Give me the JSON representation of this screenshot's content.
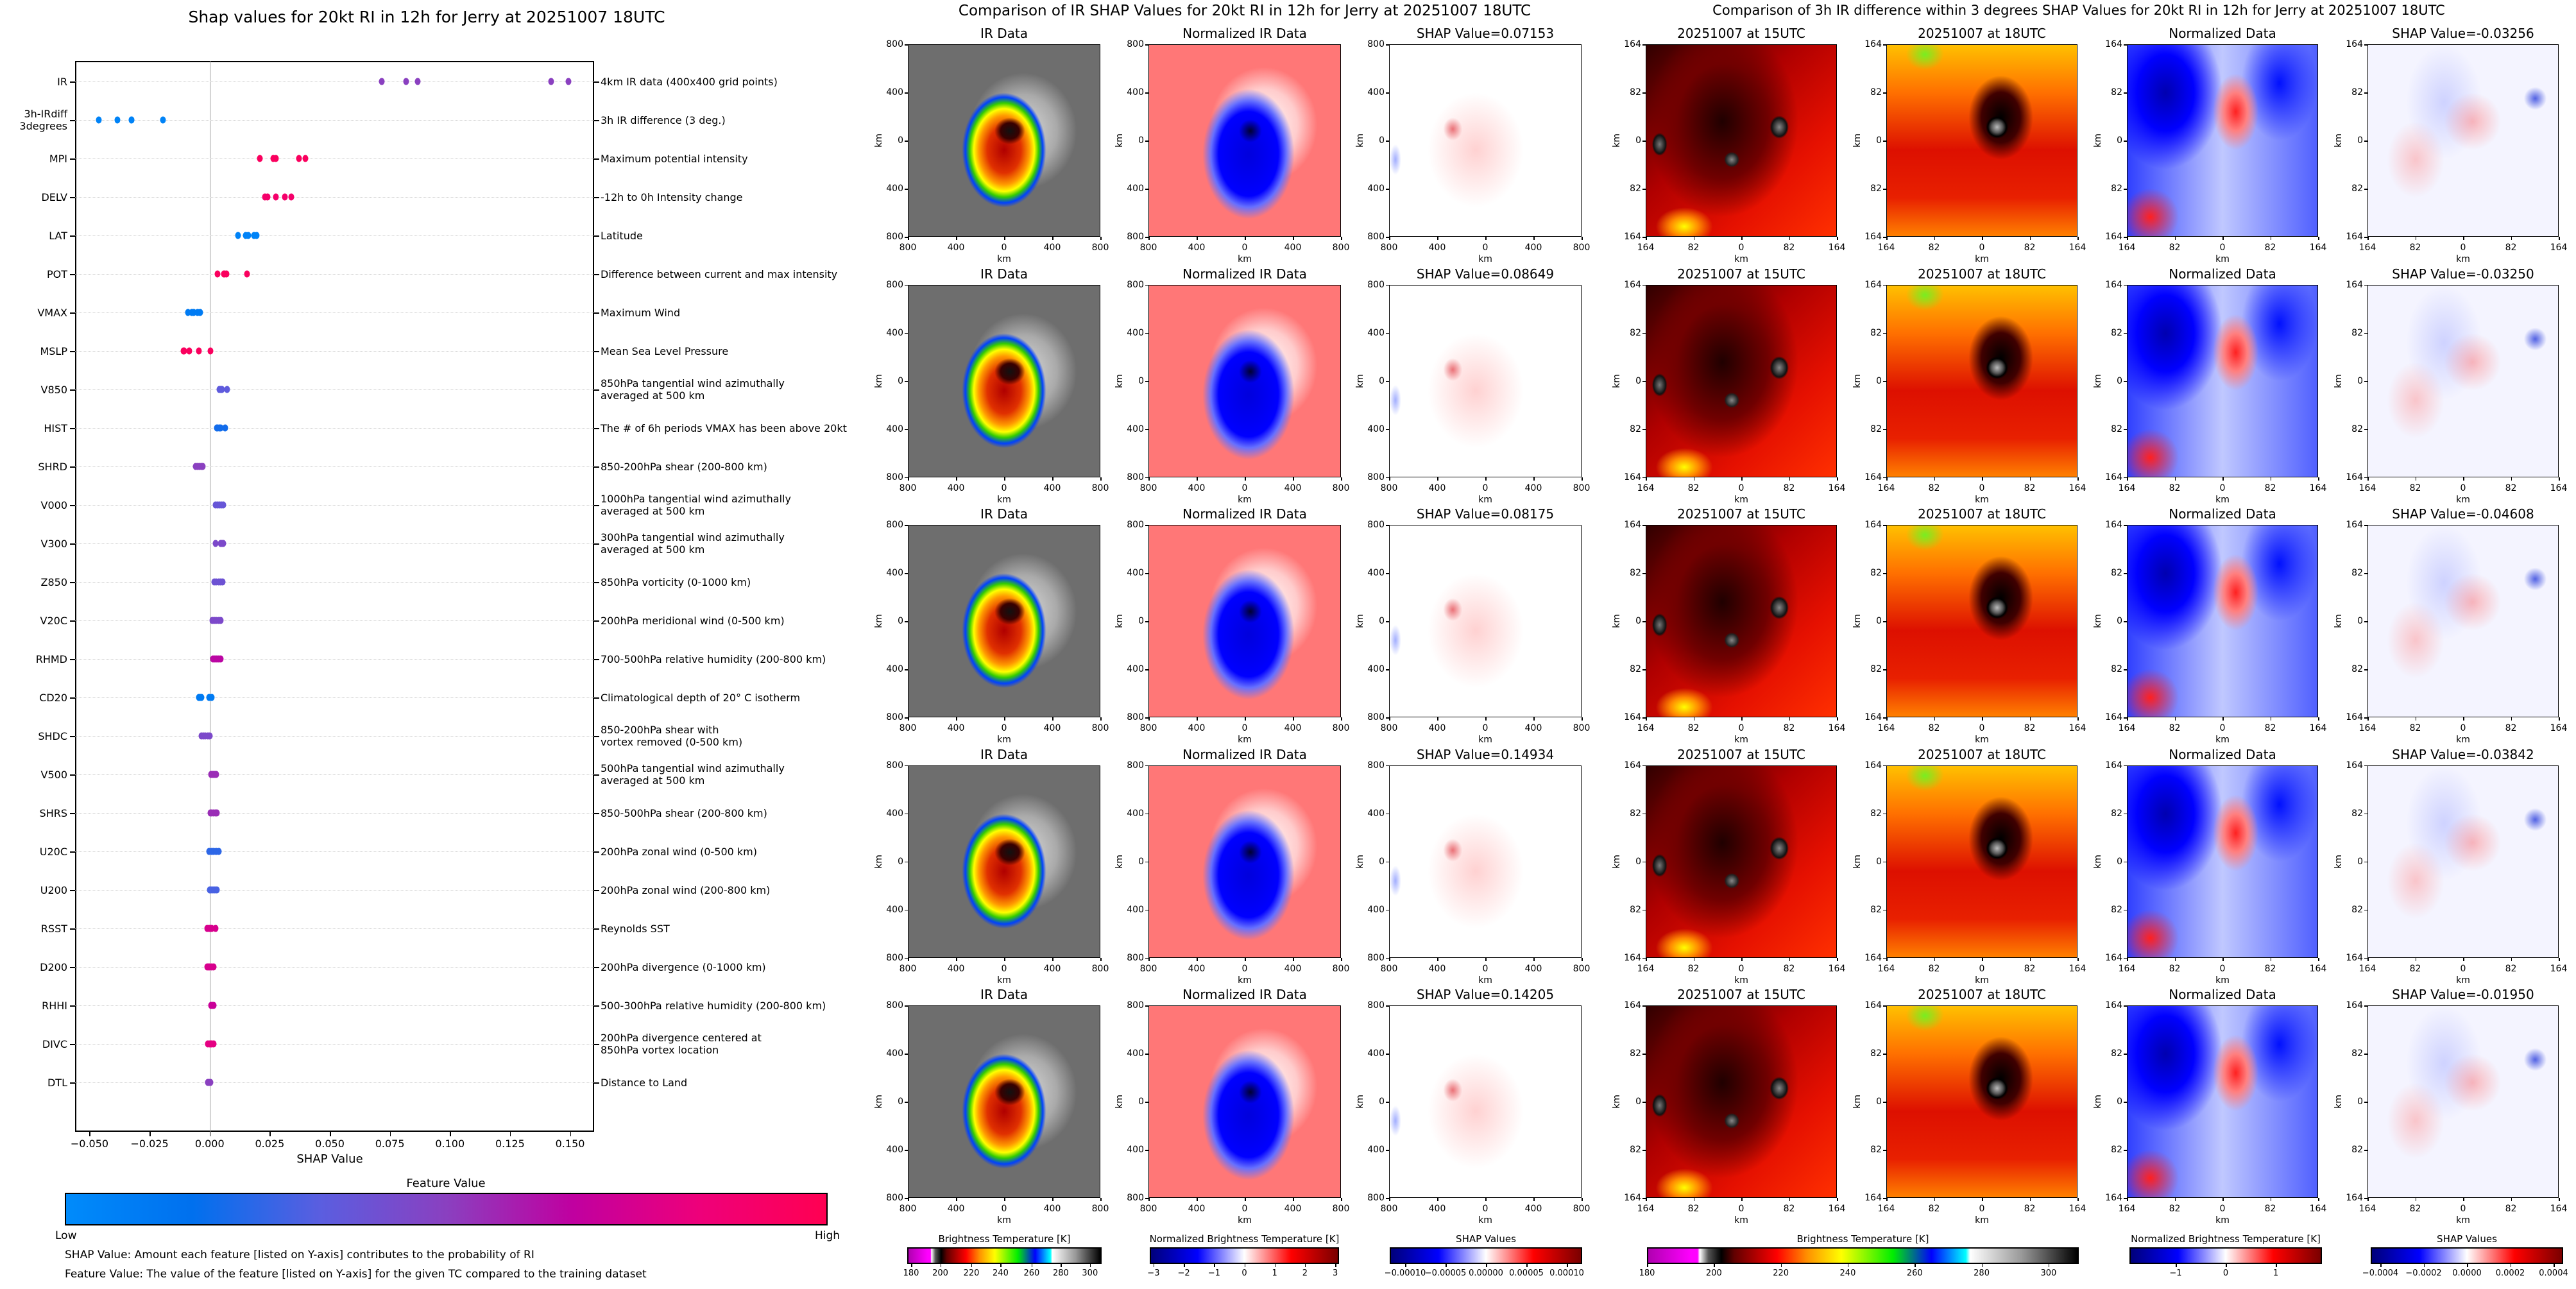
{
  "left": {
    "title": "Shap values for 20kt RI in 12h for Jerry at 20251007 18UTC",
    "xlabel": "SHAP Value",
    "xlim": [
      -0.056,
      0.16
    ],
    "xticks": [
      "−0.050",
      "−0.025",
      "0.000",
      "0.025",
      "0.050",
      "0.075",
      "0.100",
      "0.125",
      "0.150"
    ],
    "xtick_values": [
      -0.05,
      -0.025,
      0,
      0.025,
      0.05,
      0.075,
      0.1,
      0.125,
      0.15
    ],
    "features": [
      {
        "code": "IR",
        "desc": "4km IR data (400x400 grid points)",
        "feature_value": 0.5,
        "shap": [
          0.07153,
          0.08175,
          0.08649,
          0.14205,
          0.14934
        ]
      },
      {
        "code": "3h-IRdiff\n3degrees",
        "desc": "3h IR difference (3 deg.)",
        "feature_value": 0.05,
        "shap": [
          -0.04608,
          -0.03842,
          -0.03256,
          -0.0325,
          -0.0195
        ]
      },
      {
        "code": "MPI",
        "desc": "Maximum potential intensity",
        "feature_value": 0.95,
        "shap": [
          0.0209,
          0.0266,
          0.0275,
          0.0372,
          0.0399
        ]
      },
      {
        "code": "DELV",
        "desc": "-12h to 0h Intensity change",
        "feature_value": 0.9,
        "shap": [
          0.0231,
          0.0241,
          0.0275,
          0.0312,
          0.034
        ]
      },
      {
        "code": "LAT",
        "desc": "Latitude",
        "feature_value": 0.05,
        "shap": [
          0.0119,
          0.0151,
          0.016,
          0.0186,
          0.0195
        ]
      },
      {
        "code": "POT",
        "desc": "Difference between current and max intensity",
        "feature_value": 0.95,
        "shap": [
          0.0032,
          0.0059,
          0.0062,
          0.0069,
          0.0156
        ]
      },
      {
        "code": "VMAX",
        "desc": "Maximum Wind",
        "feature_value": 0.1,
        "shap": [
          -0.009,
          -0.0075,
          -0.0065,
          -0.005,
          -0.004
        ]
      },
      {
        "code": "MSLP",
        "desc": "Mean Sea Level Pressure",
        "feature_value": 0.95,
        "shap": [
          -0.011,
          -0.0105,
          -0.0085,
          -0.0046,
          0.0004
        ]
      },
      {
        "code": "V850",
        "desc": "850hPa tangential wind azimuthally\naveraged at 500 km",
        "feature_value": 0.35,
        "shap": [
          0.0041,
          0.0045,
          0.005,
          0.0052,
          0.0073
        ]
      },
      {
        "code": "HIST",
        "desc": "The # of 6h periods VMAX has been above 20kt",
        "feature_value": 0.2,
        "shap": [
          0.0029,
          0.0033,
          0.0041,
          0.0045,
          0.0066
        ]
      },
      {
        "code": "SHRD",
        "desc": "850-200hPa shear (200-800 km)",
        "feature_value": 0.5,
        "shap": [
          -0.0058,
          -0.005,
          -0.0042,
          -0.0035,
          -0.0028
        ]
      },
      {
        "code": "V000",
        "desc": "1000hPa tangential wind azimuthally\naveraged at 500 km",
        "feature_value": 0.38,
        "shap": [
          0.0025,
          0.0033,
          0.0041,
          0.0049,
          0.0057
        ]
      },
      {
        "code": "V300",
        "desc": "300hPa tangential wind azimuthally\naveraged at 500 km",
        "feature_value": 0.45,
        "shap": [
          0.0025,
          0.0045,
          0.005,
          0.0054,
          0.0057
        ]
      },
      {
        "code": "Z850",
        "desc": "850hPa vorticity (0-1000 km)",
        "feature_value": 0.4,
        "shap": [
          0.002,
          0.0028,
          0.0037,
          0.0046,
          0.0054
        ]
      },
      {
        "code": "V20C",
        "desc": "200hPa meridional wind (0-500 km)",
        "feature_value": 0.45,
        "shap": [
          0.0011,
          0.002,
          0.0028,
          0.0037,
          0.0045
        ]
      },
      {
        "code": "RHMD",
        "desc": "700-500hPa relative humidity (200-800 km)",
        "feature_value": 0.65,
        "shap": [
          0.0013,
          0.0022,
          0.003,
          0.0039,
          0.0047
        ]
      },
      {
        "code": "CD20",
        "desc": "Climatological depth of 20° C isotherm",
        "feature_value": 0.1,
        "shap": [
          -0.0044,
          -0.004,
          -0.0033,
          -0.0003,
          0.0009
        ]
      },
      {
        "code": "SHDC",
        "desc": "850-200hPa shear with\nvortex removed (0-500 km)",
        "feature_value": 0.45,
        "shap": [
          -0.0033,
          -0.0025,
          -0.0017,
          -0.0008,
          0.0
        ]
      },
      {
        "code": "V500",
        "desc": "500hPa tangential wind azimuthally\naveraged at 500 km",
        "feature_value": 0.55,
        "shap": [
          0.0007,
          0.0012,
          0.0018,
          0.0023,
          0.0028
        ]
      },
      {
        "code": "SHRS",
        "desc": "850-500hPa shear (200-800 km)",
        "feature_value": 0.55,
        "shap": [
          0.0003,
          0.001,
          0.0017,
          0.0024,
          0.0031
        ]
      },
      {
        "code": "U20C",
        "desc": "200hPa zonal wind (0-500 km)",
        "feature_value": 0.25,
        "shap": [
          -0.0002,
          0.0008,
          0.0018,
          0.0027,
          0.0037
        ]
      },
      {
        "code": "U200",
        "desc": "200hPa zonal wind (200-800 km)",
        "feature_value": 0.3,
        "shap": [
          0.0,
          0.0007,
          0.0015,
          0.0022,
          0.0029
        ]
      },
      {
        "code": "RSST",
        "desc": "Reynolds SST",
        "feature_value": 0.75,
        "shap": [
          -0.0009,
          -0.0003,
          0.0004,
          0.001,
          0.0025
        ]
      },
      {
        "code": "D200",
        "desc": "200hPa divergence (0-1000 km)",
        "feature_value": 0.75,
        "shap": [
          -0.0011,
          -0.0005,
          0.0002,
          0.0009,
          0.0016
        ]
      },
      {
        "code": "RHHI",
        "desc": "500-300hPa relative humidity (200-800 km)",
        "feature_value": 0.7,
        "shap": [
          0.0007,
          0.001,
          0.0012,
          0.0014,
          0.0016
        ]
      },
      {
        "code": "DIVC",
        "desc": "200hPa divergence centered at\n850hPa vortex location",
        "feature_value": 0.8,
        "shap": [
          -0.0006,
          0.0,
          0.0005,
          0.001,
          0.0016
        ]
      },
      {
        "code": "DTL",
        "desc": "Distance to Land",
        "feature_value": 0.5,
        "shap": [
          -0.0008,
          -0.0005,
          -0.0003,
          0.0,
          0.0003
        ]
      }
    ],
    "colorbar": {
      "title": "Feature Value",
      "low": "Low",
      "high": "High",
      "colors": [
        "#008bfb",
        "#0070ee",
        "#5a5ee0",
        "#8a40c0",
        "#c000a0",
        "#ee007a",
        "#ff0052"
      ]
    },
    "notes": [
      "SHAP Value: Amount each feature [listed on Y-axis] contributes to the probability of RI",
      "Feature Value: The value of the feature [listed on Y-axis] for the given TC compared to the training dataset"
    ]
  },
  "ir": {
    "title": "Comparison of IR SHAP Values for 20kt RI in 12h for Jerry at 20251007 18UTC",
    "axis_label": "km",
    "ticks": [
      "800",
      "400",
      "0",
      "400",
      "800"
    ],
    "rows": [
      [
        "IR Data",
        "Normalized IR Data",
        "SHAP Value=0.07153"
      ],
      [
        "IR Data",
        "Normalized IR Data",
        "SHAP Value=0.08649"
      ],
      [
        "IR Data",
        "Normalized IR Data",
        "SHAP Value=0.08175"
      ],
      [
        "IR Data",
        "Normalized IR Data",
        "SHAP Value=0.14934"
      ],
      [
        "IR Data",
        "Normalized IR Data",
        "SHAP Value=0.14205"
      ]
    ],
    "colorbars": [
      {
        "label": "Brightness Temperature [K]",
        "ticks": [
          "180",
          "200",
          "220",
          "240",
          "260",
          "280",
          "300"
        ]
      },
      {
        "label": "Normalized Brightness Temperature [K]",
        "ticks": [
          "−3",
          "−2",
          "−1",
          "0",
          "1",
          "2",
          "3"
        ]
      },
      {
        "label": "SHAP Values",
        "ticks": [
          "−0.00010",
          "−0.00005",
          "0.00000",
          "0.00005",
          "0.00010"
        ]
      }
    ]
  },
  "diff": {
    "title": "Comparison of 3h IR difference within 3 degrees SHAP Values for 20kt RI in 12h for Jerry at 20251007 18UTC",
    "axis_label": "km",
    "ticks": [
      "164",
      "82",
      "0",
      "82",
      "164"
    ],
    "rows": [
      [
        "20251007 at 15UTC",
        "20251007 at 18UTC",
        "Normalized Data",
        "SHAP Value=-0.03256"
      ],
      [
        "20251007 at 15UTC",
        "20251007 at 18UTC",
        "Normalized Data",
        "SHAP Value=-0.03250"
      ],
      [
        "20251007 at 15UTC",
        "20251007 at 18UTC",
        "Normalized Data",
        "SHAP Value=-0.04608"
      ],
      [
        "20251007 at 15UTC",
        "20251007 at 18UTC",
        "Normalized Data",
        "SHAP Value=-0.03842"
      ],
      [
        "20251007 at 15UTC",
        "20251007 at 18UTC",
        "Normalized Data",
        "SHAP Value=-0.01950"
      ]
    ],
    "colorbars": [
      {
        "label": "Brightness Temperature [K]",
        "ticks": [
          "180",
          "200",
          "220",
          "240",
          "260",
          "280",
          "300"
        ]
      },
      {
        "label": "Normalized Brightness Temperature [K]",
        "ticks": [
          "−1",
          "0",
          "1"
        ]
      },
      {
        "label": "SHAP Values",
        "ticks": [
          "−0.0004",
          "−0.0002",
          "0.0000",
          "0.0002",
          "0.0004"
        ]
      }
    ]
  }
}
